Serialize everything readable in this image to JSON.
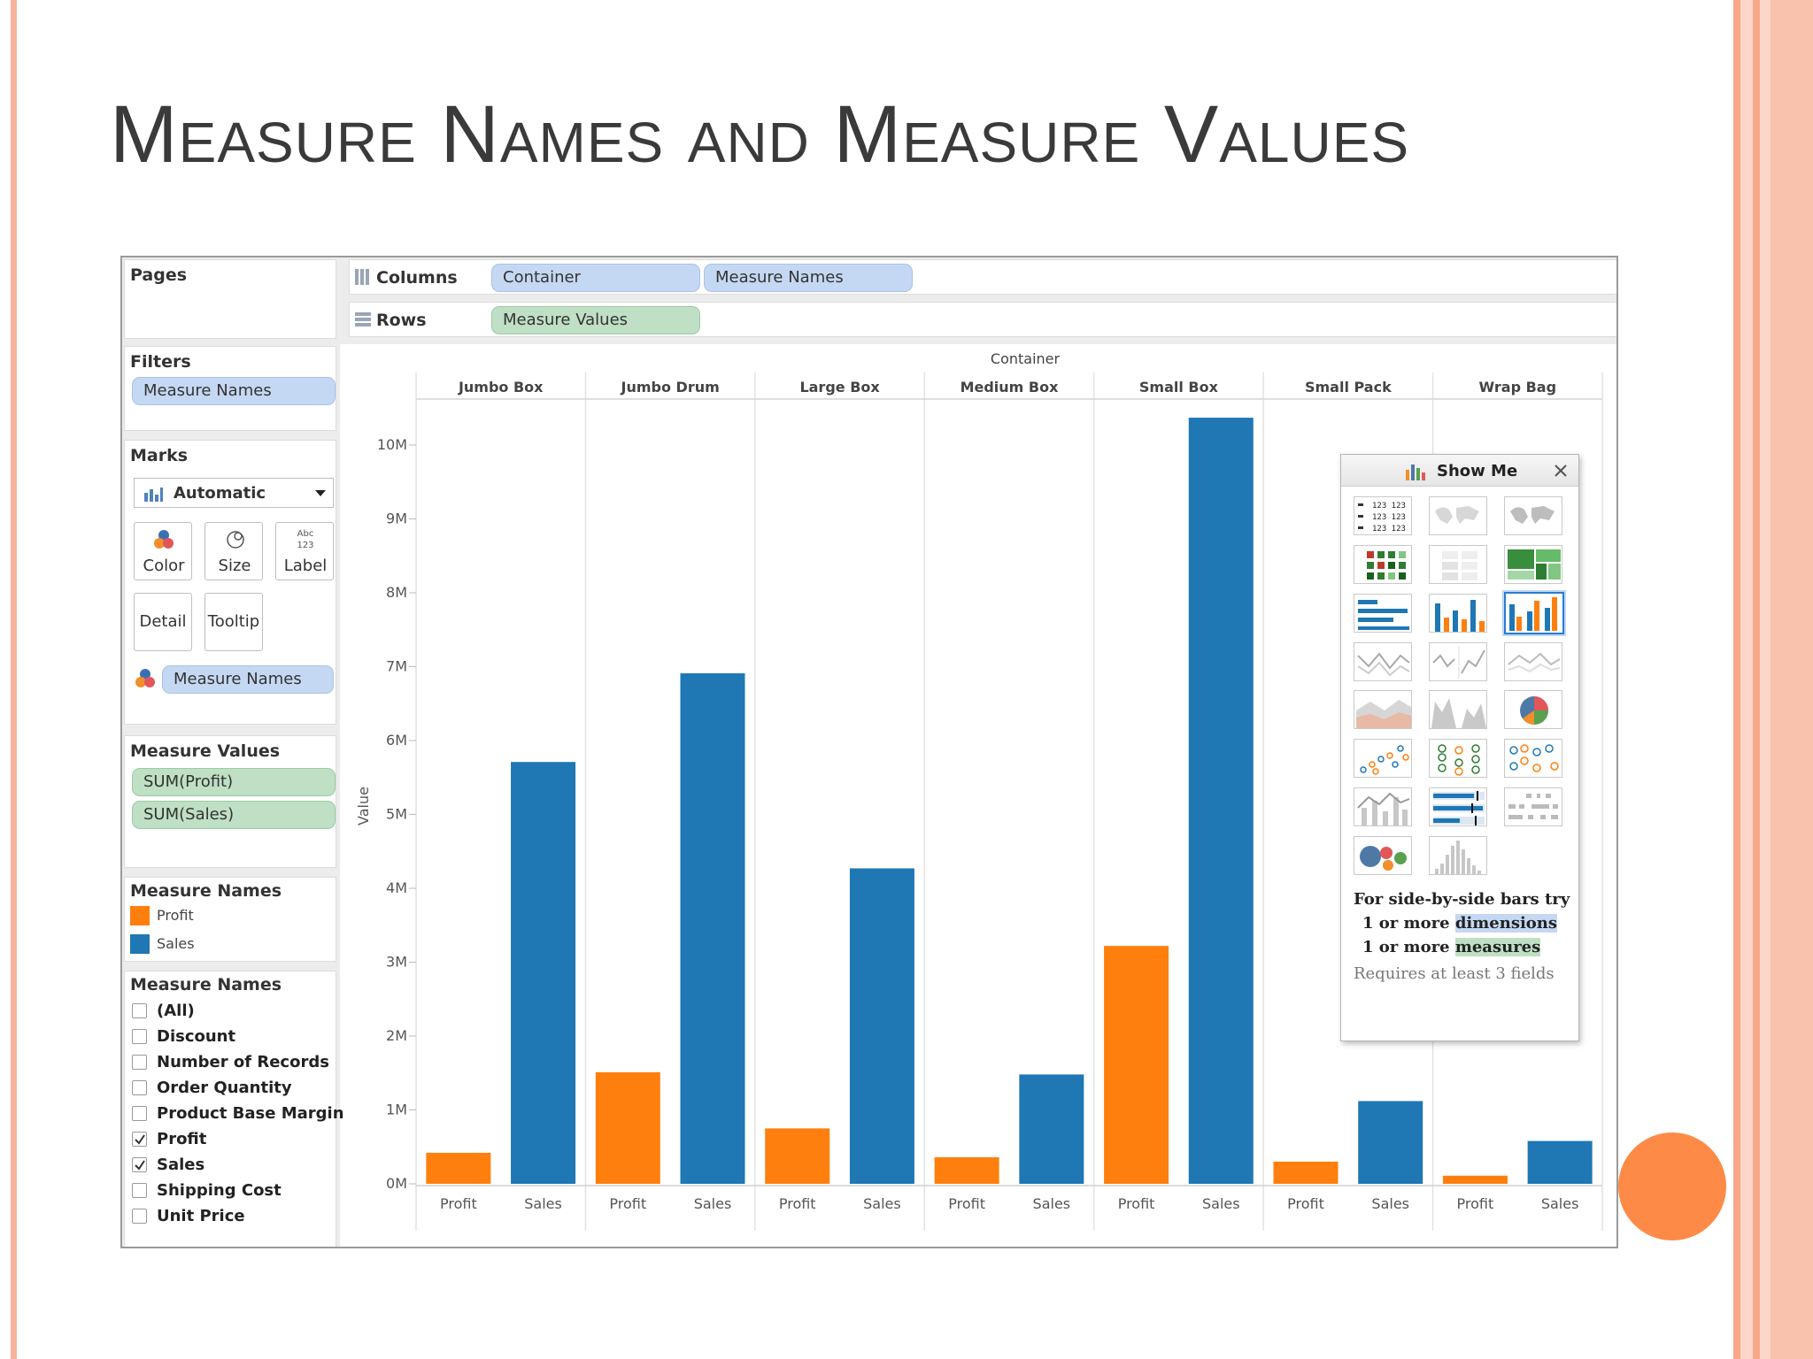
{
  "slide": {
    "title": "Measure Names and Measure Values",
    "colors": {
      "stripe": "#f7b39a",
      "band": "#fbd7c9",
      "accent_circle": "#fd8b47"
    }
  },
  "pages": {
    "label": "Pages"
  },
  "filters": {
    "label": "Filters",
    "pill": "Measure Names"
  },
  "marks": {
    "label": "Marks",
    "type": "Automatic",
    "buttons": {
      "color": "Color",
      "size": "Size",
      "label": "Label",
      "detail": "Detail",
      "tooltip": "Tooltip"
    },
    "color_pill": "Measure Names"
  },
  "measure_values": {
    "label": "Measure Values",
    "items": [
      "SUM(Profit)",
      "SUM(Sales)"
    ]
  },
  "legend": {
    "label": "Measure Names",
    "items": [
      {
        "name": "Profit",
        "color": "#ff7f0e"
      },
      {
        "name": "Sales",
        "color": "#1f77b4"
      }
    ]
  },
  "filter_list": {
    "label": "Measure Names",
    "items": [
      {
        "name": "(All)",
        "checked": false
      },
      {
        "name": "Discount",
        "checked": false
      },
      {
        "name": "Number of Records",
        "checked": false
      },
      {
        "name": "Order Quantity",
        "checked": false
      },
      {
        "name": "Product Base Margin",
        "checked": false
      },
      {
        "name": "Profit",
        "checked": true
      },
      {
        "name": "Sales",
        "checked": true
      },
      {
        "name": "Shipping Cost",
        "checked": false
      },
      {
        "name": "Unit Price",
        "checked": false
      }
    ]
  },
  "shelves": {
    "columns_label": "Columns",
    "columns_pills": [
      "Container",
      "Measure Names"
    ],
    "rows_label": "Rows",
    "rows_pills": [
      "Measure Values"
    ]
  },
  "show_me": {
    "title": "Show Me",
    "hint_line1": "For side-by-side bars try",
    "hint_line2_pre": "1 or more ",
    "hint_line2_em": "dimensions",
    "hint_line3_pre": "1 or more ",
    "hint_line3_em": "measures",
    "hint_line4": "Requires at least 3 fields",
    "thumb_text": "123 123"
  },
  "chart_data": {
    "type": "bar",
    "title": "",
    "group_header": "Container",
    "categories": [
      "Jumbo Box",
      "Jumbo Drum",
      "Large Box",
      "Medium Box",
      "Small Box",
      "Small Pack",
      "Wrap Bag"
    ],
    "sub_categories": [
      "Profit",
      "Sales"
    ],
    "series": [
      {
        "name": "Profit",
        "color": "#ff7f0e",
        "values": [
          0.42,
          1.51,
          0.75,
          0.36,
          3.22,
          0.3,
          0.11
        ]
      },
      {
        "name": "Sales",
        "color": "#1f77b4",
        "values": [
          5.71,
          6.91,
          4.27,
          1.48,
          10.37,
          1.12,
          0.58
        ]
      }
    ],
    "ylabel": "Value",
    "y_unit": "M",
    "ylim": [
      0,
      11
    ],
    "yticks": [
      "0M",
      "1M",
      "2M",
      "3M",
      "4M",
      "5M",
      "6M",
      "7M",
      "8M",
      "9M",
      "10M"
    ],
    "grid": false,
    "legend": "left-panel"
  }
}
